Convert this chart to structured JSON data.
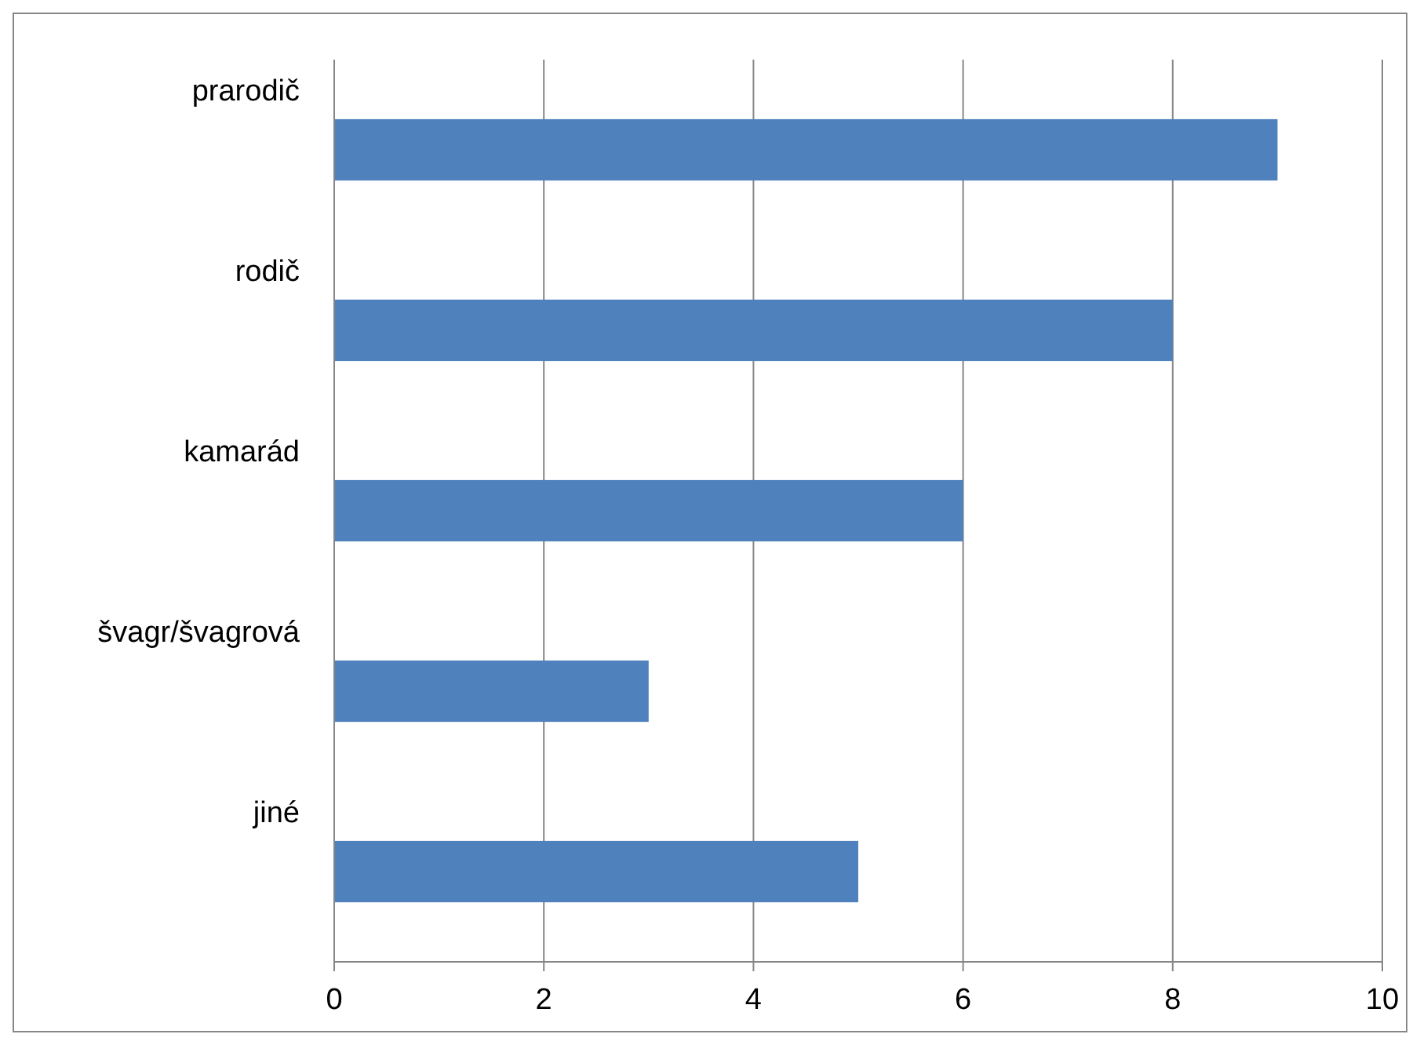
{
  "chart_data": {
    "type": "bar",
    "orientation": "horizontal",
    "categories": [
      "prarodič",
      "rodič",
      "kamarád",
      "švagr/švagrová",
      "jiné"
    ],
    "values": [
      9,
      8,
      6,
      3,
      5
    ],
    "color": "#4f81bd",
    "xlim": [
      0,
      10
    ],
    "xticks": [
      0,
      2,
      4,
      6,
      8,
      10
    ],
    "grid": "x"
  }
}
